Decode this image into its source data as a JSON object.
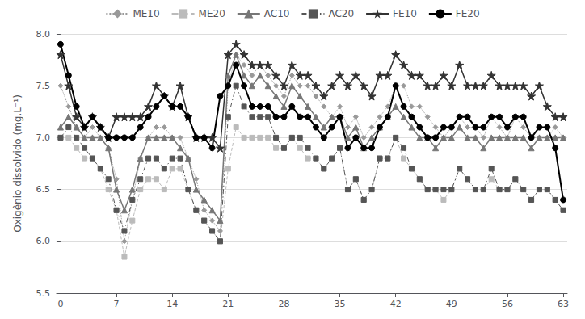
{
  "chart_data": {
    "type": "line",
    "ylabel": "Oxigênio dissolvido (mg.L⁻¹)",
    "x": [
      0,
      1,
      2,
      3,
      4,
      5,
      6,
      7,
      8,
      9,
      10,
      11,
      12,
      13,
      14,
      15,
      16,
      17,
      18,
      19,
      20,
      21,
      22,
      23,
      24,
      25,
      26,
      27,
      28,
      29,
      30,
      31,
      32,
      33,
      34,
      35,
      36,
      37,
      38,
      39,
      40,
      41,
      42,
      43,
      44,
      45,
      46,
      47,
      48,
      49,
      50,
      51,
      52,
      53,
      54,
      55,
      56,
      57,
      58,
      59,
      60,
      61,
      62,
      63
    ],
    "xlim": [
      -0.5,
      63.5
    ],
    "xticks": [
      0,
      7,
      14,
      21,
      28,
      35,
      42,
      49,
      56,
      63
    ],
    "ylim": [
      5.5,
      8.0
    ],
    "yticks": [
      5.5,
      {
        "value": 6.0,
        "label": "6.0"
      },
      6.5,
      {
        "value": 7.0,
        "label": "7.0"
      },
      7.5,
      {
        "value": 8.0,
        "label": "8.0"
      }
    ],
    "grid": true,
    "legend": "top",
    "series": [
      {
        "name": "ME10",
        "color": "#999999",
        "line_style": "dotted",
        "marker": "diamond",
        "values": [
          7.5,
          7.3,
          7.1,
          7.0,
          7.1,
          7.0,
          6.9,
          6.6,
          6.0,
          6.4,
          6.8,
          7.0,
          7.1,
          7.1,
          7.0,
          7.0,
          6.8,
          6.6,
          6.3,
          6.2,
          6.1,
          7.5,
          7.8,
          7.7,
          7.6,
          7.7,
          7.6,
          7.5,
          7.4,
          7.6,
          7.5,
          7.5,
          7.4,
          7.3,
          7.2,
          7.3,
          7.1,
          7.2,
          7.0,
          7.1,
          7.2,
          7.3,
          7.5,
          7.5,
          7.3,
          7.3,
          7.2,
          7.1,
          7.0,
          7.1,
          7.2,
          7.1,
          7.1,
          7.0,
          7.2,
          7.1,
          7.0,
          7.2,
          7.1,
          7.0,
          7.0,
          7.0,
          7.1,
          7.0
        ]
      },
      {
        "name": "ME20",
        "color": "#bbbbbb",
        "line_style": "dashed",
        "marker": "square",
        "values": [
          7.0,
          7.0,
          6.9,
          6.8,
          6.8,
          6.7,
          6.5,
          6.3,
          5.85,
          6.2,
          6.5,
          6.6,
          6.6,
          6.5,
          6.7,
          6.7,
          6.5,
          6.3,
          6.2,
          6.1,
          6.0,
          6.7,
          7.1,
          7.0,
          7.0,
          7.0,
          7.0,
          6.9,
          6.9,
          7.0,
          6.9,
          6.8,
          6.8,
          6.7,
          6.8,
          6.9,
          6.5,
          6.6,
          6.4,
          6.5,
          6.8,
          6.8,
          7.0,
          6.8,
          6.7,
          6.6,
          6.5,
          6.5,
          6.4,
          6.5,
          6.7,
          6.6,
          6.5,
          6.5,
          6.6,
          6.5,
          6.5,
          6.6,
          6.5,
          6.4,
          6.5,
          6.5,
          6.4,
          6.3
        ]
      },
      {
        "name": "AC10",
        "color": "#777777",
        "line_style": "solid",
        "marker": "triangle",
        "values": [
          7.1,
          7.2,
          7.1,
          7.0,
          7.0,
          7.0,
          6.9,
          6.5,
          6.3,
          6.5,
          6.8,
          7.0,
          7.0,
          7.0,
          7.0,
          6.9,
          6.8,
          6.5,
          6.4,
          6.3,
          6.2,
          7.6,
          7.8,
          7.6,
          7.5,
          7.6,
          7.5,
          7.4,
          7.3,
          7.5,
          7.4,
          7.3,
          7.2,
          7.1,
          7.2,
          7.2,
          7.0,
          7.1,
          6.9,
          7.0,
          7.1,
          7.2,
          7.3,
          7.2,
          7.1,
          7.0,
          7.0,
          6.9,
          7.0,
          7.0,
          7.1,
          7.0,
          7.0,
          6.9,
          7.0,
          7.0,
          7.0,
          7.0,
          7.0,
          6.9,
          7.0,
          7.0,
          7.0,
          7.0
        ]
      },
      {
        "name": "AC20",
        "color": "#555555",
        "line_style": "dashdot",
        "marker": "square",
        "values": [
          7.0,
          7.1,
          7.0,
          6.9,
          6.8,
          6.7,
          6.6,
          6.3,
          6.1,
          6.4,
          6.6,
          6.8,
          6.8,
          6.7,
          6.8,
          6.8,
          6.5,
          6.3,
          6.2,
          6.1,
          6.0,
          7.2,
          7.5,
          7.3,
          7.2,
          7.2,
          7.2,
          7.0,
          6.9,
          7.0,
          7.0,
          6.9,
          6.8,
          6.7,
          6.8,
          6.9,
          6.5,
          6.6,
          6.4,
          6.5,
          6.8,
          6.8,
          7.0,
          6.9,
          6.7,
          6.6,
          6.5,
          6.5,
          6.5,
          6.5,
          6.7,
          6.6,
          6.5,
          6.5,
          6.7,
          6.5,
          6.5,
          6.6,
          6.5,
          6.4,
          6.5,
          6.5,
          6.4,
          6.3
        ]
      },
      {
        "name": "FE10",
        "color": "#333333",
        "line_style": "solid",
        "marker": "star",
        "values": [
          7.8,
          7.5,
          7.2,
          7.1,
          7.2,
          7.1,
          7.0,
          7.2,
          7.2,
          7.2,
          7.2,
          7.3,
          7.5,
          7.4,
          7.3,
          7.5,
          7.2,
          7.0,
          7.0,
          7.0,
          6.9,
          7.8,
          7.9,
          7.8,
          7.7,
          7.7,
          7.7,
          7.6,
          7.5,
          7.7,
          7.6,
          7.6,
          7.5,
          7.4,
          7.5,
          7.6,
          7.5,
          7.6,
          7.5,
          7.4,
          7.6,
          7.6,
          7.8,
          7.7,
          7.6,
          7.6,
          7.5,
          7.5,
          7.6,
          7.5,
          7.7,
          7.5,
          7.5,
          7.5,
          7.6,
          7.5,
          7.5,
          7.5,
          7.5,
          7.4,
          7.5,
          7.3,
          7.2,
          7.2
        ]
      },
      {
        "name": "FE20",
        "color": "#000000",
        "line_style": "solid",
        "marker": "circle",
        "values": [
          7.9,
          7.6,
          7.3,
          7.1,
          7.2,
          7.1,
          7.0,
          7.0,
          7.0,
          7.0,
          7.1,
          7.2,
          7.3,
          7.4,
          7.3,
          7.3,
          7.2,
          7.0,
          7.0,
          6.9,
          7.4,
          7.5,
          7.7,
          7.5,
          7.3,
          7.3,
          7.3,
          7.2,
          7.2,
          7.3,
          7.2,
          7.2,
          7.1,
          7.0,
          7.1,
          7.2,
          6.9,
          7.0,
          6.9,
          6.9,
          7.1,
          7.2,
          7.5,
          7.3,
          7.2,
          7.1,
          7.0,
          7.0,
          7.1,
          7.1,
          7.2,
          7.2,
          7.1,
          7.1,
          7.2,
          7.2,
          7.1,
          7.2,
          7.2,
          7.0,
          7.1,
          7.1,
          6.9,
          6.4
        ]
      }
    ]
  }
}
